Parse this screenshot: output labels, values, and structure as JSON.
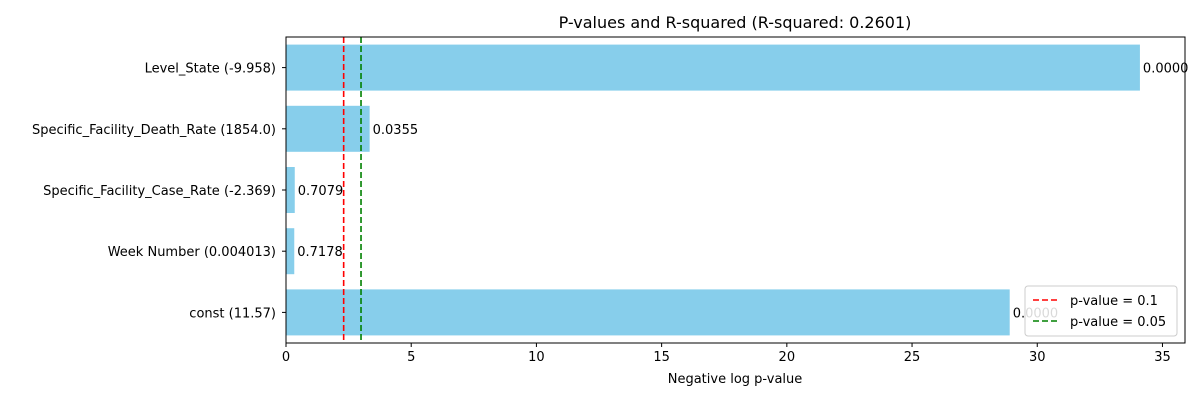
{
  "chart_data": {
    "type": "bar",
    "orientation": "horizontal",
    "title": "P-values and R-squared (R-squared: 0.2601)",
    "xlabel": "Negative log p-value",
    "ylabel": "",
    "xlim": [
      0,
      35.9
    ],
    "xticks": [
      0,
      5,
      10,
      15,
      20,
      25,
      30,
      35
    ],
    "categories": [
      "Level_State (-9.958)",
      "Specific_Facility_Death_Rate (1854.0)",
      "Specific_Facility_Case_Rate (-2.369)",
      "Week Number (0.004013)",
      "const (11.57)"
    ],
    "values": [
      34.1,
      3.34,
      0.35,
      0.33,
      28.9
    ],
    "data_labels": [
      "0.0000",
      "0.0355",
      "0.7079",
      "0.7178",
      "0.0000"
    ],
    "bar_color": "#87ceeb",
    "reference_lines": [
      {
        "x": 2.3026,
        "color": "#ff0000",
        "label": "p-value = 0.1"
      },
      {
        "x": 2.9957,
        "color": "#008000",
        "label": "p-value = 0.05"
      }
    ],
    "legend_position": "lower-right",
    "grid": false
  }
}
